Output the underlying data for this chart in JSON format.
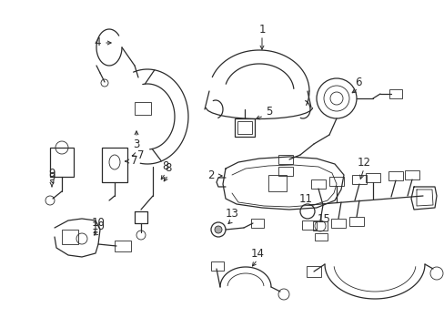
{
  "background_color": "#ffffff",
  "figure_width": 4.89,
  "figure_height": 3.6,
  "dpi": 100,
  "line_color": "#2a2a2a",
  "label_fontsize": 8.5
}
